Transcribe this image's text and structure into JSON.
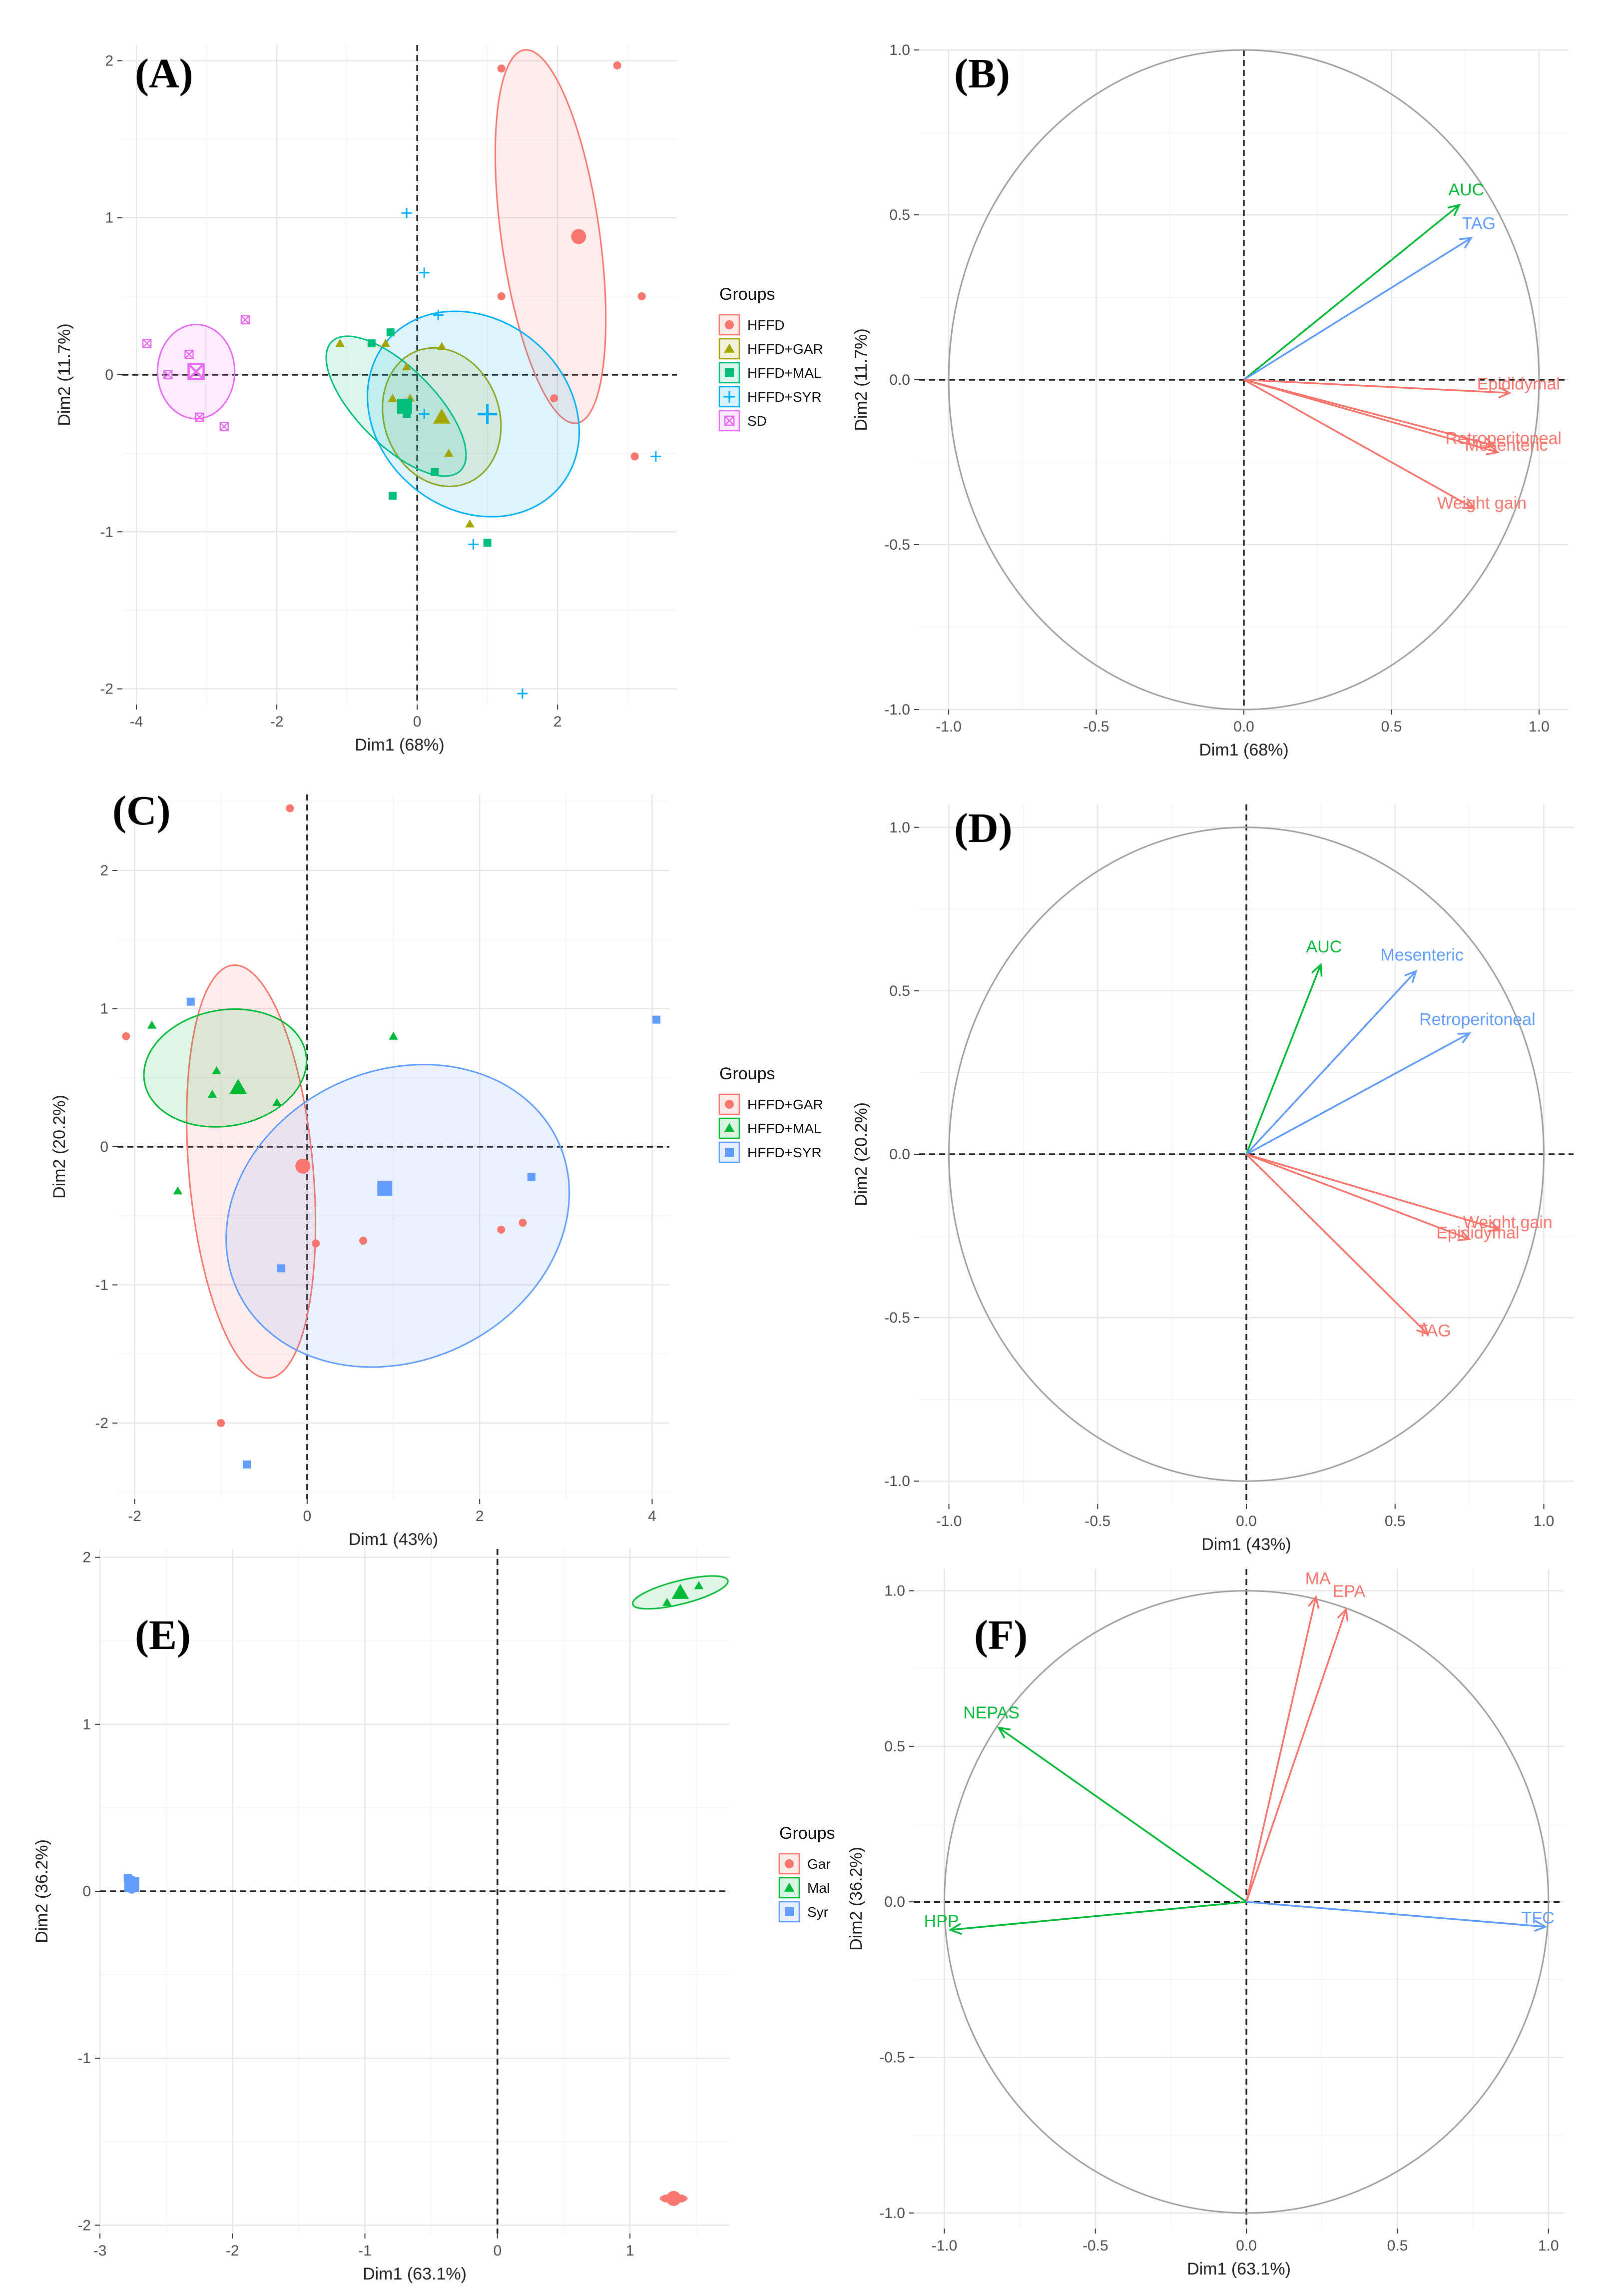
{
  "colors": {
    "red": "#F8766D",
    "olive": "#A3A500",
    "green": "#00BF7D",
    "cyan": "#00B0F6",
    "magenta": "#E76BF3",
    "mal_green": "#00BA38",
    "syr_blue": "#619CFF"
  },
  "chart_data": [
    {
      "panel": "(A)",
      "type": "scatter",
      "xlabel": "Dim1 (68%)",
      "ylabel": "Dim2 (11.7%)",
      "xlim": [
        -4.2,
        3.7
      ],
      "ylim": [
        -2.1,
        2.1
      ],
      "xticks": [
        -4,
        -2,
        0,
        2
      ],
      "yticks": [
        -2,
        -1,
        0,
        1,
        2
      ],
      "legend": {
        "title": "Groups",
        "position": "right"
      },
      "groups": [
        {
          "name": "HFFD",
          "color": "#F8766D",
          "shape": "circle",
          "points": [
            [
              1.2,
              1.95
            ],
            [
              2.85,
              1.97
            ],
            [
              1.2,
              0.5
            ],
            [
              3.2,
              0.5
            ],
            [
              1.95,
              -0.15
            ],
            [
              3.1,
              -0.52
            ]
          ],
          "centroid": [
            2.3,
            0.88
          ],
          "ellipse": {
            "cx": 1.9,
            "cy": 0.88,
            "rx": 0.7,
            "ry": 1.2,
            "angle": -8
          }
        },
        {
          "name": "HFFD+GAR",
          "color": "#A3A500",
          "shape": "triangle",
          "points": [
            [
              -1.1,
              0.2
            ],
            [
              -0.45,
              0.2
            ],
            [
              0.35,
              0.18
            ],
            [
              -0.15,
              0.05
            ],
            [
              -0.1,
              -0.15
            ],
            [
              0.75,
              -0.95
            ],
            [
              0.45,
              -0.5
            ],
            [
              -0.35,
              -0.15
            ]
          ],
          "centroid": [
            0.35,
            -0.27
          ],
          "ellipse": {
            "cx": 0.35,
            "cy": -0.27,
            "rx": 0.82,
            "ry": 0.45,
            "angle": -20
          }
        },
        {
          "name": "HFFD+MAL",
          "color": "#00BF7D",
          "shape": "square",
          "points": [
            [
              -0.65,
              0.2
            ],
            [
              -0.38,
              0.27
            ],
            [
              -0.35,
              -0.77
            ],
            [
              0.25,
              -0.62
            ],
            [
              1.0,
              -1.07
            ],
            [
              -0.15,
              -0.25
            ]
          ],
          "centroid": [
            -0.18,
            -0.2
          ],
          "ellipse": {
            "cx": -0.3,
            "cy": -0.2,
            "rx": 0.55,
            "ry": 0.58,
            "angle": -45
          }
        },
        {
          "name": "HFFD+SYR",
          "color": "#00B0F6",
          "shape": "plus",
          "points": [
            [
              -0.15,
              1.03
            ],
            [
              0.1,
              0.65
            ],
            [
              0.3,
              0.38
            ],
            [
              3.4,
              -0.52
            ],
            [
              0.8,
              -1.08
            ],
            [
              1.5,
              -2.03
            ],
            [
              0.1,
              -0.25
            ]
          ],
          "centroid": [
            1.0,
            -0.25
          ],
          "ellipse": {
            "cx": 0.8,
            "cy": -0.25,
            "rx": 1.35,
            "ry": 0.72,
            "angle": -50
          }
        },
        {
          "name": "SD",
          "color": "#E76BF3",
          "shape": "square-x",
          "points": [
            [
              -3.85,
              0.2
            ],
            [
              -2.45,
              0.35
            ],
            [
              -3.25,
              0.13
            ],
            [
              -3.55,
              0.0
            ],
            [
              -3.1,
              -0.27
            ],
            [
              -2.75,
              -0.33
            ]
          ],
          "centroid": [
            -3.15,
            0.02
          ],
          "ellipse": {
            "cx": -3.15,
            "cy": 0.02,
            "rx": 0.55,
            "ry": 0.3,
            "angle": 0
          }
        }
      ]
    },
    {
      "panel": "(B)",
      "type": "variable-correlation-circle",
      "xlabel": "Dim1 (68%)",
      "ylabel": "Dim2 (11.7%)",
      "xlim": [
        -1.1,
        1.1
      ],
      "ylim": [
        -1.0,
        1.0
      ],
      "xticks": [
        -1.0,
        -0.5,
        0.0,
        0.5,
        1.0
      ],
      "yticks": [
        -1.0,
        -0.5,
        0.0,
        0.5,
        1.0
      ],
      "vectors": [
        {
          "name": "AUC",
          "x": 0.73,
          "y": 0.53,
          "color": "#00BA38"
        },
        {
          "name": "TAG",
          "x": 0.77,
          "y": 0.43,
          "color": "#619CFF"
        },
        {
          "name": "Epididymal",
          "x": 0.9,
          "y": -0.04,
          "color": "#F8766D"
        },
        {
          "name": "Retroperitoneal",
          "x": 0.85,
          "y": -0.2,
          "color": "#F8766D"
        },
        {
          "name": "Mesenteric",
          "x": 0.86,
          "y": -0.22,
          "color": "#F8766D"
        },
        {
          "name": "Weight gain",
          "x": 0.78,
          "y": -0.39,
          "color": "#F8766D"
        }
      ]
    },
    {
      "panel": "(C)",
      "type": "scatter",
      "xlabel": "Dim1 (43%)",
      "ylabel": "Dim2 (20.2%)",
      "xlim": [
        -2.2,
        4.2
      ],
      "ylim": [
        -2.55,
        2.55
      ],
      "xticks": [
        -2,
        0,
        2,
        4
      ],
      "yticks": [
        -2,
        -1,
        0,
        1,
        2
      ],
      "legend": {
        "title": "Groups",
        "position": "right"
      },
      "groups": [
        {
          "name": "HFFD+GAR",
          "color": "#F8766D",
          "shape": "circle",
          "points": [
            [
              -0.2,
              2.45
            ],
            [
              -2.1,
              0.8
            ],
            [
              0.1,
              -0.7
            ],
            [
              0.65,
              -0.68
            ],
            [
              2.25,
              -0.6
            ],
            [
              2.5,
              -0.55
            ],
            [
              -1.0,
              -2.0
            ]
          ],
          "centroid": [
            -0.05,
            -0.14
          ],
          "ellipse": {
            "cx": -0.65,
            "cy": -0.18,
            "rx": 0.72,
            "ry": 1.5,
            "angle": -5
          }
        },
        {
          "name": "HFFD+MAL",
          "color": "#00BA38",
          "shape": "triangle",
          "points": [
            [
              -1.8,
              0.88
            ],
            [
              -1.05,
              0.55
            ],
            [
              -1.1,
              0.38
            ],
            [
              -0.35,
              0.32
            ],
            [
              1.0,
              0.8
            ],
            [
              -1.5,
              -0.32
            ]
          ],
          "centroid": [
            -0.8,
            0.43
          ],
          "ellipse": {
            "cx": -0.95,
            "cy": 0.57,
            "rx": 0.95,
            "ry": 0.42,
            "angle": -10
          }
        },
        {
          "name": "HFFD+SYR",
          "color": "#619CFF",
          "shape": "square",
          "points": [
            [
              -1.35,
              1.05
            ],
            [
              4.05,
              0.92
            ],
            [
              2.6,
              -0.22
            ],
            [
              -0.3,
              -0.88
            ],
            [
              -0.7,
              -2.3
            ],
            [
              0.9,
              -0.32
            ]
          ],
          "centroid": [
            0.9,
            -0.3
          ],
          "ellipse": {
            "cx": 1.05,
            "cy": -0.5,
            "rx": 2.05,
            "ry": 1.05,
            "angle": -25
          }
        }
      ]
    },
    {
      "panel": "(D)",
      "type": "variable-correlation-circle",
      "xlabel": "Dim1 (43%)",
      "ylabel": "Dim2 (20.2%)",
      "xlim": [
        -1.1,
        1.1
      ],
      "ylim": [
        -1.07,
        1.07
      ],
      "xticks": [
        -1.0,
        -0.5,
        0.0,
        0.5,
        1.0
      ],
      "yticks": [
        -1.0,
        -0.5,
        0.0,
        0.5,
        1.0
      ],
      "vectors": [
        {
          "name": "AUC",
          "x": 0.25,
          "y": 0.58,
          "color": "#00BA38"
        },
        {
          "name": "Mesenteric",
          "x": 0.57,
          "y": 0.56,
          "color": "#619CFF"
        },
        {
          "name": "Retroperitoneal",
          "x": 0.75,
          "y": 0.37,
          "color": "#619CFF"
        },
        {
          "name": "Weight gain",
          "x": 0.85,
          "y": -0.23,
          "color": "#F8766D"
        },
        {
          "name": "Epididymal",
          "x": 0.75,
          "y": -0.26,
          "color": "#F8766D"
        },
        {
          "name": "TAG",
          "x": 0.61,
          "y": -0.55,
          "color": "#F8766D"
        }
      ]
    },
    {
      "panel": "(E)",
      "type": "scatter",
      "xlabel": "Dim1 (63.1%)",
      "ylabel": "Dim2 (36.2%)",
      "xlim": [
        -3.0,
        1.75
      ],
      "ylim": [
        -2.05,
        2.05
      ],
      "xticks": [
        -3,
        -2,
        -1,
        0,
        1
      ],
      "yticks": [
        -2,
        -1,
        0,
        1,
        2
      ],
      "legend": {
        "title": "Groups",
        "position": "right"
      },
      "groups": [
        {
          "name": "Gar",
          "color": "#F8766D",
          "shape": "circle",
          "points": [
            [
              1.27,
              -1.84
            ],
            [
              1.33,
              -1.85
            ],
            [
              1.39,
              -1.84
            ]
          ],
          "centroid": [
            1.33,
            -1.84
          ],
          "ellipse": {
            "cx": 1.33,
            "cy": -1.84,
            "rx": 0.1,
            "ry": 0.02,
            "angle": 0
          }
        },
        {
          "name": "Mal",
          "color": "#00BA38",
          "shape": "triangle",
          "points": [
            [
              1.28,
              1.73
            ],
            [
              1.36,
              1.78
            ],
            [
              1.52,
              1.83
            ]
          ],
          "centroid": [
            1.38,
            1.79
          ],
          "ellipse": {
            "cx": 1.38,
            "cy": 1.79,
            "rx": 0.37,
            "ry": 0.07,
            "angle": -14
          }
        },
        {
          "name": "Syr",
          "color": "#619CFF",
          "shape": "square",
          "points": [
            [
              -2.79,
              0.08
            ],
            [
              -2.74,
              0.04
            ],
            [
              -2.75,
              0.02
            ]
          ],
          "centroid": [
            -2.76,
            0.04
          ],
          "ellipse": {
            "cx": -2.76,
            "cy": 0.04,
            "rx": 0.04,
            "ry": 0.05,
            "angle": 0
          }
        }
      ]
    },
    {
      "panel": "(F)",
      "type": "variable-correlation-circle",
      "xlabel": "Dim1 (63.1%)",
      "ylabel": "Dim2 (36.2%)",
      "xlim": [
        -1.1,
        1.05
      ],
      "ylim": [
        -1.05,
        1.07
      ],
      "xticks": [
        -1.0,
        -0.5,
        0.0,
        0.5,
        1.0
      ],
      "yticks": [
        -1.0,
        -0.5,
        0.0,
        0.5,
        1.0
      ],
      "vectors": [
        {
          "name": "MA",
          "x": 0.23,
          "y": 0.98,
          "color": "#F8766D"
        },
        {
          "name": "EPA",
          "x": 0.33,
          "y": 0.94,
          "color": "#F8766D"
        },
        {
          "name": "NEPAS",
          "x": -0.82,
          "y": 0.56,
          "color": "#00BA38"
        },
        {
          "name": "HPP",
          "x": -0.98,
          "y": -0.09,
          "color": "#00BA38"
        },
        {
          "name": "TFC",
          "x": 0.99,
          "y": -0.08,
          "color": "#619CFF"
        }
      ]
    }
  ]
}
